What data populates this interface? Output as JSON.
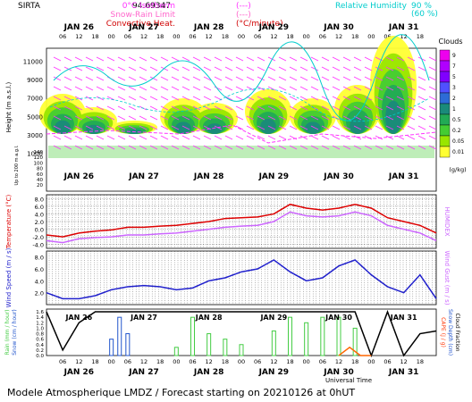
{
  "header": {
    "site": "SIRTA",
    "site_value": "94.69347",
    "legend": [
      {
        "label": "0°C Isotherm",
        "symbol": "(---)",
        "color": "#ff33ff"
      },
      {
        "label": "Snow-Rain Limit",
        "symbol": "(---)",
        "color": "#ff66cc"
      },
      {
        "label": "Convective Heat.",
        "symbol": "(°C/minute)",
        "color": "#d00000"
      }
    ],
    "humidity": {
      "label": "Relative Humidity",
      "v90": "90 %",
      "v60": "(60 %)",
      "color": "#00cccc"
    }
  },
  "days": [
    "JAN 26",
    "JAN 27",
    "JAN 28",
    "JAN 29",
    "JAN 30",
    "JAN 31"
  ],
  "hours": [
    "06",
    "12",
    "18",
    "00",
    "06",
    "12",
    "18",
    "00",
    "06",
    "12",
    "18",
    "00",
    "06",
    "12",
    "18",
    "00",
    "06",
    "12",
    "18",
    "00",
    "06",
    "12",
    "18"
  ],
  "clouds": {
    "title": "Clouds",
    "unit": "(g/kg)",
    "scale": [
      "9",
      "7",
      "5",
      "3",
      "2",
      "1",
      "0.5",
      "0.2",
      "0.05",
      "0.01"
    ],
    "scale_colors": [
      "#ee00ee",
      "#b000ff",
      "#8000ff",
      "#5050ff",
      "#2d6bd6",
      "#1a8a7a",
      "#22aa55",
      "#44cc33",
      "#99e600",
      "#ffff33"
    ],
    "y_label": "Height (m a.s.l.)",
    "y_label2": "Up to 200 m a.g.l.",
    "y_ticks": [
      "11000",
      "9000",
      "7000",
      "5000",
      "3000",
      "1000"
    ],
    "y_ticks_low": [
      "140",
      "120",
      "100",
      "80",
      "60",
      "40",
      "20"
    ]
  },
  "temperature": {
    "y_label": "Temperature (°C)",
    "y_label_right": "HUMIDEX",
    "ticks": [
      "8.0",
      "6.0",
      "4.0",
      "2.0",
      "0.0",
      "-2.0",
      "-4.0"
    ]
  },
  "wind": {
    "y_label": "Wind Speed (m / s)",
    "y_label_right": "Wind Gust (m / s)",
    "ticks": [
      "8.0",
      "6.0",
      "4.0",
      "2.0"
    ]
  },
  "rain": {
    "y_label": "Rain (mm / hour)",
    "y_label2": "Snow (cm / hour)",
    "y_label_right": "CAPE (J / g)",
    "y_label_right2": "Snow Depth (cm)",
    "y_label_right3": "Cloud Fraction",
    "ticks": [
      "1.6",
      "1.4",
      "1.2",
      "1.0",
      "0.8",
      "0.6",
      "0.4",
      "0.2",
      "0.0"
    ]
  },
  "xaxis_label": "Universal Time",
  "footer": "Modele Atmospherique LMDZ / Forecast starting on 20210126 at 0hUT",
  "chart_data": {
    "type": "line",
    "x_unit": "hours since 2021-01-26 00UT",
    "temperature": {
      "color": "#dd0000",
      "x": [
        0,
        6,
        12,
        18,
        24,
        30,
        36,
        42,
        48,
        54,
        60,
        66,
        72,
        78,
        84,
        90,
        96,
        102,
        108,
        114,
        120,
        126,
        132,
        138,
        144
      ],
      "y": [
        -1.5,
        -2.0,
        -1.0,
        -0.5,
        -0.2,
        0.5,
        0.5,
        0.8,
        1.0,
        1.5,
        2.0,
        2.8,
        3.0,
        3.2,
        4.0,
        6.5,
        5.5,
        5.0,
        5.5,
        6.5,
        5.5,
        3.0,
        2.0,
        1.0,
        -1.0
      ]
    },
    "humidex": {
      "color": "#cc66ff",
      "x": [
        0,
        6,
        12,
        18,
        24,
        30,
        36,
        42,
        48,
        54,
        60,
        66,
        72,
        78,
        84,
        90,
        96,
        102,
        108,
        114,
        120,
        126,
        132,
        138,
        144
      ],
      "y": [
        -3.0,
        -3.5,
        -2.5,
        -2.2,
        -2.0,
        -1.5,
        -1.5,
        -1.2,
        -1.0,
        -0.5,
        0.0,
        0.5,
        0.8,
        1.0,
        2.0,
        4.5,
        3.5,
        3.2,
        3.5,
        4.5,
        3.5,
        1.0,
        0.0,
        -1.0,
        -3.0
      ]
    },
    "wind_speed": {
      "color": "#2020cc",
      "x": [
        0,
        6,
        12,
        18,
        24,
        30,
        36,
        42,
        48,
        54,
        60,
        66,
        72,
        78,
        84,
        90,
        96,
        102,
        108,
        114,
        120,
        126,
        132,
        138,
        144
      ],
      "y": [
        2.0,
        1.0,
        1.0,
        1.5,
        2.5,
        3.0,
        3.2,
        3.0,
        2.5,
        2.8,
        4.0,
        4.5,
        5.5,
        6.0,
        7.5,
        5.5,
        4.0,
        4.5,
        6.5,
        7.5,
        5.0,
        3.0,
        2.0,
        5.0,
        1.0
      ]
    },
    "rain_series": [
      {
        "color": "#44cc44",
        "x": [
          48,
          54,
          60,
          66,
          72,
          84,
          90,
          96,
          102,
          108,
          114
        ],
        "y": [
          0.3,
          1.4,
          0.8,
          0.6,
          0.4,
          0.9,
          1.4,
          1.2,
          1.4,
          1.4,
          1.0
        ]
      },
      {
        "color": "#2255cc",
        "x": [
          24,
          27,
          30
        ],
        "y": [
          0.6,
          1.4,
          0.8
        ]
      }
    ],
    "cloud_fraction": {
      "color": "#000000",
      "x": [
        0,
        6,
        12,
        18,
        24,
        30,
        36,
        42,
        48,
        54,
        60,
        66,
        72,
        78,
        84,
        90,
        96,
        102,
        108,
        114,
        120,
        126,
        132,
        138,
        144
      ],
      "y": [
        1.6,
        0.2,
        1.2,
        1.6,
        1.6,
        1.6,
        1.6,
        1.6,
        1.6,
        1.6,
        1.6,
        1.6,
        1.6,
        1.6,
        1.6,
        1.6,
        1.6,
        1.6,
        1.6,
        1.6,
        0.0,
        1.6,
        0.0,
        0.8,
        0.9
      ]
    },
    "cape": {
      "color": "#ff6600",
      "x": [
        108,
        112,
        116,
        120
      ],
      "y": [
        0.0,
        0.3,
        0.0,
        0.0
      ]
    }
  }
}
